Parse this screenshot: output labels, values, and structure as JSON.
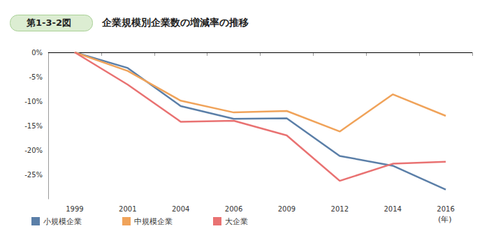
{
  "chart_data": {
    "type": "line",
    "title": "企業規模別企業数の増減率の推移",
    "annotations": [
      "第1-3-2図"
    ],
    "xlabel": "(年)",
    "categories": [
      "1999",
      "2001",
      "2004",
      "2006",
      "2009",
      "2012",
      "2014",
      "2016"
    ],
    "series": [
      {
        "name": "小規模企業",
        "color": "#5b7fa8",
        "values": [
          0,
          -3.2,
          -11.0,
          -13.6,
          -13.5,
          -21.2,
          -23.2,
          -28.1
        ]
      },
      {
        "name": "中規模企業",
        "color": "#f0a35a",
        "values": [
          0,
          -3.8,
          -9.9,
          -12.3,
          -12.0,
          -16.2,
          -8.6,
          -13.0
        ]
      },
      {
        "name": "大企業",
        "color": "#e97272",
        "values": [
          0,
          -6.6,
          -14.2,
          -14.0,
          -17.0,
          -26.3,
          -22.8,
          -22.4
        ]
      }
    ],
    "ylim": [
      -30,
      0
    ],
    "yticks": [
      {
        "value": 0,
        "label": "0%"
      },
      {
        "value": -5,
        "label": "-5%"
      },
      {
        "value": -10,
        "label": "-10%"
      },
      {
        "value": -15,
        "label": "-15%"
      },
      {
        "value": -20,
        "label": "-20%"
      },
      {
        "value": -25,
        "label": "-25%"
      }
    ],
    "grid": false,
    "legend": "bottom-left"
  }
}
